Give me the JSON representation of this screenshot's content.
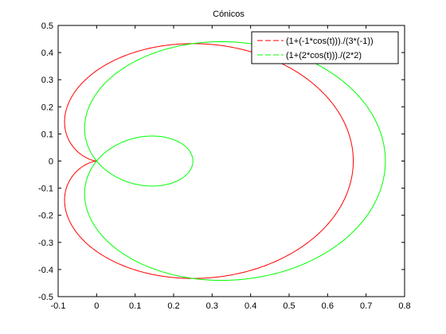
{
  "chart_data": {
    "type": "line",
    "title": "Cónicos",
    "xlabel": "",
    "ylabel": "",
    "xlim": [
      -0.1,
      0.8
    ],
    "ylim": [
      -0.5,
      0.5
    ],
    "xticks": [
      -0.1,
      0,
      0.1,
      0.2,
      0.3,
      0.4,
      0.5,
      0.6,
      0.7,
      0.8
    ],
    "yticks": [
      -0.5,
      -0.4,
      -0.3,
      -0.2,
      -0.1,
      0,
      0.1,
      0.2,
      0.3,
      0.4,
      0.5
    ],
    "xtick_labels": [
      "-0.1",
      "0",
      "0.1",
      "0.2",
      "0.3",
      "0.4",
      "0.5",
      "0.6",
      "0.7",
      "0.8"
    ],
    "ytick_labels": [
      "-0.5",
      "-0.4",
      "-0.3",
      "-0.2",
      "-0.1",
      "0",
      "0.1",
      "0.2",
      "0.3",
      "0.4",
      "0.5"
    ],
    "grid": false,
    "legend_position": "top-right",
    "series": [
      {
        "name": "(1+(-1*cos(t)))./(3*(-1))",
        "color": "#ff0000",
        "equation": "polar r = (1 - cos t) / (-3)",
        "samples": 721,
        "t_range": [
          0,
          6.283185307
        ]
      },
      {
        "name": "(1+(2*cos(t)))./(2*2)",
        "color": "#00ff00",
        "equation": "polar r = (1 + 2 cos t) / 4",
        "samples": 721,
        "t_range": [
          0,
          6.283185307
        ]
      }
    ]
  }
}
